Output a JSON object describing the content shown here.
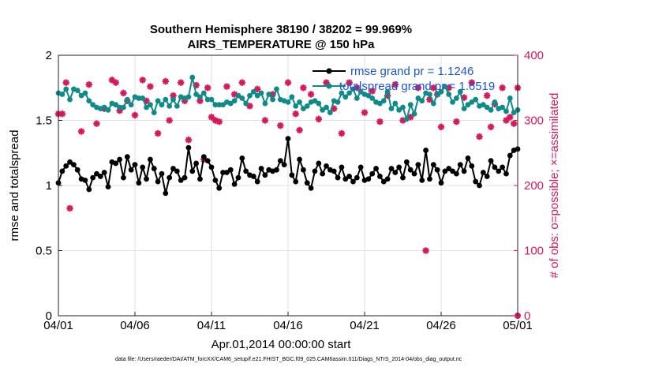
{
  "chart_data": {
    "type": "line",
    "title": "Southern Hemisphere 38190 / 38202 = 99.969%",
    "subtitle": "AIRS_TEMPERATURE @ 150 hPa",
    "xlabel": "Apr.01,2014 00:00:00 start",
    "ylabel": "rmse and totalspread",
    "ylabel_right": "# of obs: o=possible; ×=assimilated",
    "x_ticks": [
      "04/01",
      "04/06",
      "04/11",
      "04/16",
      "04/21",
      "04/26",
      "05/01"
    ],
    "x_range_days": [
      0,
      30
    ],
    "ylim": [
      0,
      2
    ],
    "y_ticks": [
      "0",
      "0.5",
      "1",
      "1.5",
      "2"
    ],
    "ylim_right": [
      0,
      400
    ],
    "y_ticks_right": [
      "0",
      "100",
      "200",
      "300",
      "400"
    ],
    "grid": true,
    "legend_position": "top-right",
    "colors": {
      "rmse": "#000000",
      "totalspread": "#0f8a8a",
      "obs": "#d6195a",
      "legend_text": "#1a55d8"
    },
    "series": [
      {
        "name": "rmse grand pr = 1.1246",
        "axis": "left",
        "x": [
          0,
          0.25,
          0.5,
          0.75,
          1,
          1.25,
          1.5,
          1.75,
          2,
          2.25,
          2.5,
          2.75,
          3,
          3.25,
          3.5,
          3.75,
          4,
          4.25,
          4.5,
          4.75,
          5,
          5.25,
          5.5,
          5.75,
          6,
          6.25,
          6.5,
          6.75,
          7,
          7.25,
          7.5,
          7.75,
          8,
          8.25,
          8.5,
          8.75,
          9,
          9.25,
          9.5,
          9.75,
          10,
          10.25,
          10.5,
          10.75,
          11,
          11.25,
          11.5,
          11.75,
          12,
          12.25,
          12.5,
          12.75,
          13,
          13.25,
          13.5,
          13.75,
          14,
          14.25,
          14.5,
          14.75,
          15,
          15.25,
          15.5,
          15.75,
          16,
          16.25,
          16.5,
          16.75,
          17,
          17.25,
          17.5,
          17.75,
          18,
          18.25,
          18.5,
          18.75,
          19,
          19.25,
          19.5,
          19.75,
          20,
          20.25,
          20.5,
          20.75,
          21,
          21.25,
          21.5,
          21.75,
          22,
          22.25,
          22.5,
          22.75,
          23,
          23.25,
          23.5,
          23.75,
          24,
          24.25,
          24.5,
          24.75,
          25,
          25.25,
          25.5,
          25.75,
          26,
          26.25,
          26.5,
          26.75,
          27,
          27.25,
          27.5,
          27.75,
          28,
          28.25,
          28.5,
          28.75,
          29,
          29.25,
          29.5,
          29.75,
          30
        ],
        "values": [
          1.02,
          1.11,
          1.15,
          1.18,
          1.16,
          1.12,
          1.05,
          1.04,
          0.97,
          1.06,
          1.09,
          1.07,
          1.1,
          0.99,
          1.18,
          1.17,
          1.2,
          1.06,
          1.22,
          1.12,
          1.16,
          1.02,
          1.14,
          1.05,
          1.2,
          1.13,
          1.03,
          1.09,
          0.94,
          1.06,
          1.13,
          1.11,
          1.04,
          1.06,
          1.29,
          1.11,
          1.17,
          1.05,
          1.22,
          1.19,
          1.14,
          1.04,
          0.98,
          1.1,
          1.1,
          1.12,
          1.01,
          1.06,
          1.21,
          1.11,
          1.08,
          1.07,
          1.03,
          1.13,
          1.08,
          1.12,
          1.11,
          1.12,
          1.19,
          1.16,
          1.36,
          1.08,
          1.03,
          1.2,
          1.12,
          1.02,
          0.98,
          1.11,
          1.17,
          1.09,
          1.15,
          1.12,
          1.11,
          1.06,
          1.14,
          1.05,
          1.07,
          1.03,
          1.06,
          1.14,
          1.04,
          1.05,
          1.09,
          1.13,
          1.07,
          1.03,
          1.05,
          1.13,
          1.1,
          1.14,
          1.06,
          1.18,
          1.12,
          1.09,
          1.16,
          1.04,
          1.27,
          1.05,
          1.16,
          1.12,
          1.02,
          1.11,
          1.13,
          1.11,
          1.09,
          1.16,
          1.11,
          1.21,
          1.15,
          1.03,
          1.0,
          1.1,
          1.07,
          1.19,
          1.14,
          1.11,
          1.14,
          1.09,
          1.23,
          1.27,
          1.28
        ]
      },
      {
        "name": "totalspread grand pr = 1.6519",
        "axis": "left",
        "x": [
          0,
          0.25,
          0.5,
          0.75,
          1,
          1.25,
          1.5,
          1.75,
          2,
          2.25,
          2.5,
          2.75,
          3,
          3.25,
          3.5,
          3.75,
          4,
          4.25,
          4.5,
          4.75,
          5,
          5.25,
          5.5,
          5.75,
          6,
          6.25,
          6.5,
          6.75,
          7,
          7.25,
          7.5,
          7.75,
          8,
          8.25,
          8.5,
          8.75,
          9,
          9.25,
          9.5,
          9.75,
          10,
          10.25,
          10.5,
          10.75,
          11,
          11.25,
          11.5,
          11.75,
          12,
          12.25,
          12.5,
          12.75,
          13,
          13.25,
          13.5,
          13.75,
          14,
          14.25,
          14.5,
          14.75,
          15,
          15.25,
          15.5,
          15.75,
          16,
          16.25,
          16.5,
          16.75,
          17,
          17.25,
          17.5,
          17.75,
          18,
          18.25,
          18.5,
          18.75,
          19,
          19.25,
          19.5,
          19.75,
          20,
          20.25,
          20.5,
          20.75,
          21,
          21.25,
          21.5,
          21.75,
          22,
          22.25,
          22.5,
          22.75,
          23,
          23.25,
          23.5,
          23.75,
          24,
          24.25,
          24.5,
          24.75,
          25,
          25.25,
          25.5,
          25.75,
          26,
          26.25,
          26.5,
          26.75,
          27,
          27.25,
          27.5,
          27.75,
          28,
          28.25,
          28.5,
          28.75,
          29,
          29.25,
          29.5,
          29.75,
          30
        ],
        "values": [
          1.71,
          1.7,
          1.74,
          1.66,
          1.74,
          1.73,
          1.69,
          1.71,
          1.65,
          1.62,
          1.6,
          1.59,
          1.6,
          1.58,
          1.63,
          1.62,
          1.6,
          1.6,
          1.66,
          1.62,
          1.68,
          1.67,
          1.67,
          1.6,
          1.62,
          1.56,
          1.65,
          1.62,
          1.66,
          1.61,
          1.66,
          1.61,
          1.68,
          1.67,
          1.68,
          1.83,
          1.7,
          1.68,
          1.71,
          1.66,
          1.66,
          1.62,
          1.62,
          1.62,
          1.64,
          1.63,
          1.65,
          1.69,
          1.67,
          1.63,
          1.69,
          1.72,
          1.69,
          1.71,
          1.63,
          1.7,
          1.66,
          1.74,
          1.66,
          1.65,
          1.64,
          1.68,
          1.61,
          1.64,
          1.59,
          1.61,
          1.64,
          1.65,
          1.63,
          1.58,
          1.6,
          1.56,
          1.65,
          1.64,
          1.71,
          1.68,
          1.71,
          1.74,
          1.67,
          1.72,
          1.7,
          1.69,
          1.67,
          1.64,
          1.63,
          1.65,
          1.72,
          1.59,
          1.63,
          1.58,
          1.6,
          1.51,
          1.62,
          1.55,
          1.67,
          1.65,
          1.71,
          1.7,
          1.63,
          1.7,
          1.72,
          1.76,
          1.7,
          1.64,
          1.67,
          1.72,
          1.59,
          1.62,
          1.64,
          1.66,
          1.61,
          1.62,
          1.6,
          1.58,
          1.64,
          1.59,
          1.6,
          1.57,
          1.67,
          1.56,
          1.58
        ]
      },
      {
        "name": "obs assimilated",
        "axis": "right",
        "marker": "star",
        "x": [
          0,
          0.25,
          0.5,
          0.75,
          1.5,
          2,
          2.5,
          3,
          3.5,
          3.75,
          4,
          4.25,
          4.5,
          5,
          5.5,
          5.75,
          6,
          6.5,
          7,
          7.25,
          7.5,
          8,
          8.25,
          8.5,
          9,
          9.25,
          9.5,
          9.75,
          10,
          10.25,
          10.5,
          11,
          11.5,
          12,
          12.5,
          13,
          13.5,
          14,
          14.5,
          15,
          15.5,
          15.75,
          16,
          16.5,
          17,
          17.5,
          18,
          18.5,
          19,
          19.5,
          20,
          20.5,
          21,
          21.5,
          22,
          22.5,
          23,
          23.5,
          24,
          24.25,
          24.5,
          24.75,
          25,
          25.5,
          26,
          26.5,
          27,
          27.5,
          28,
          28.25,
          28.5,
          29,
          29.25,
          29.5,
          29.75,
          30
        ],
        "values": [
          310,
          310,
          358,
          165,
          283,
          355,
          295,
          318,
          362,
          358,
          315,
          342,
          330,
          308,
          362,
          330,
          352,
          280,
          360,
          300,
          338,
          358,
          330,
          270,
          354,
          330,
          240,
          350,
          305,
          300,
          298,
          352,
          340,
          358,
          322,
          348,
          300,
          340,
          292,
          358,
          310,
          285,
          350,
          340,
          302,
          358,
          318,
          280,
          358,
          350,
          312,
          345,
          298,
          338,
          355,
          300,
          305,
          350,
          100,
          332,
          350,
          340,
          290,
          350,
          298,
          335,
          358,
          275,
          338,
          290,
          325,
          350,
          300,
          305,
          295,
          350
        ]
      }
    ],
    "footnote": "data file: /Users/raeder/DAI/ATM_forcXX/CAM6_setup/f.e21.FHIST_BGC.f09_025.CAM6assim.011/Diags_NTrS_2014-04/obs_diag_output.nc"
  }
}
